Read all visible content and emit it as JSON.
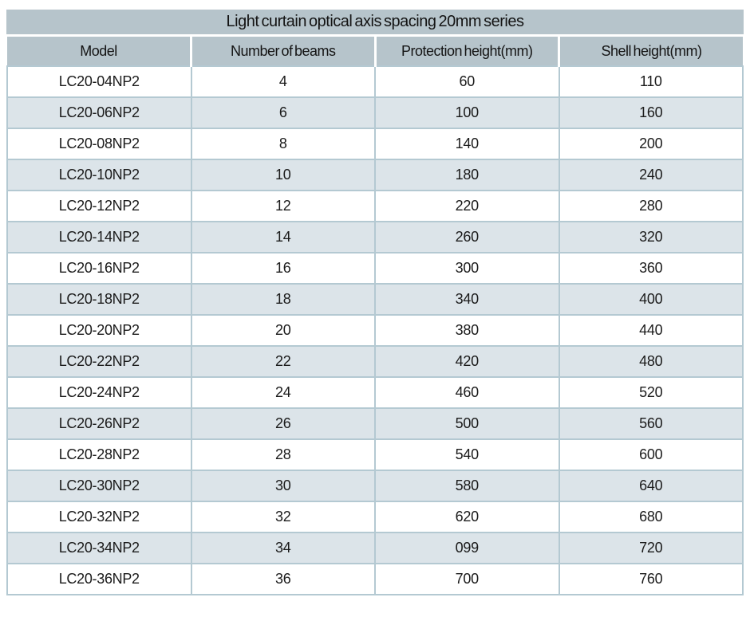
{
  "table": {
    "title": "Light curtain optical axis spacing 20mm series",
    "columns": [
      "Model",
      "Number of beams",
      "Protection height(mm)",
      "Shell height(mm)"
    ],
    "rows": [
      [
        "LC20-04NP2",
        "4",
        "60",
        "110"
      ],
      [
        "LC20-06NP2",
        "6",
        "100",
        "160"
      ],
      [
        "LC20-08NP2",
        "8",
        "140",
        "200"
      ],
      [
        "LC20-10NP2",
        "10",
        "180",
        "240"
      ],
      [
        "LC20-12NP2",
        "12",
        "220",
        "280"
      ],
      [
        "LC20-14NP2",
        "14",
        "260",
        "320"
      ],
      [
        "LC20-16NP2",
        "16",
        "300",
        "360"
      ],
      [
        "LC20-18NP2",
        "18",
        "340",
        "400"
      ],
      [
        "LC20-20NP2",
        "20",
        "380",
        "440"
      ],
      [
        "LC20-22NP2",
        "22",
        "420",
        "480"
      ],
      [
        "LC20-24NP2",
        "24",
        "460",
        "520"
      ],
      [
        "LC20-26NP2",
        "26",
        "500",
        "560"
      ],
      [
        "LC20-28NP2",
        "28",
        "540",
        "600"
      ],
      [
        "LC20-30NP2",
        "30",
        "580",
        "640"
      ],
      [
        "LC20-32NP2",
        "32",
        "620",
        "680"
      ],
      [
        "LC20-34NP2",
        "34",
        "099",
        "720"
      ],
      [
        "LC20-36NP2",
        "36",
        "700",
        "760"
      ]
    ],
    "colors": {
      "header_bg": "#b6c4cb",
      "row_stripe_bg": "#dce4e9",
      "row_bg": "#ffffff",
      "grid_border": "#b4c9d2",
      "text": "#1b1b1b"
    }
  }
}
